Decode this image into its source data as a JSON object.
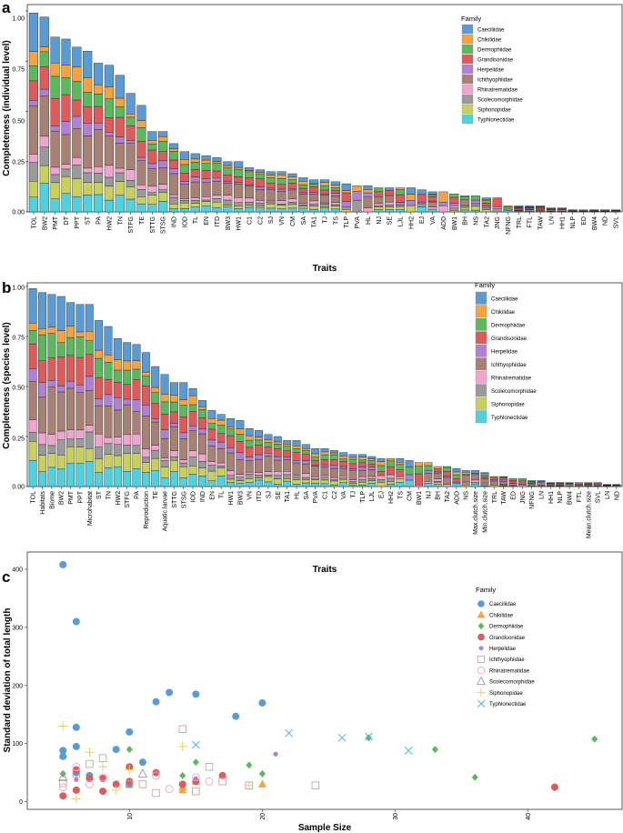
{
  "families": [
    {
      "name": "Caeciliidae",
      "color": "#5B9BD5"
    },
    {
      "name": "Chikilidae",
      "color": "#F4A340"
    },
    {
      "name": "Dermophiidae",
      "color": "#5CB85C"
    },
    {
      "name": "Grandisonidae",
      "color": "#E05A5A"
    },
    {
      "name": "Herpelidae",
      "color": "#B07FD6"
    },
    {
      "name": "Ichthyophiidae",
      "color": "#A88174"
    },
    {
      "name": "Rhinatrematidae",
      "color": "#F2A4CF"
    },
    {
      "name": "Scolecomorphidae",
      "color": "#9A9A9A"
    },
    {
      "name": "Siphonopidae",
      "color": "#C8CF5A"
    },
    {
      "name": "Typhlonectidae",
      "color": "#4FD1DF"
    }
  ],
  "chart_data": [
    {
      "id": "a",
      "panel_label": "a",
      "type": "bar",
      "stacked": true,
      "ylabel": "Completeness (individual level)",
      "xlabel": "Traits",
      "legend_title": "Family",
      "ylim": [
        0,
        1.0
      ],
      "yticks": [
        "0.00",
        "0.25",
        "0.50",
        "0.75",
        "1.00"
      ],
      "categories": [
        "TOL",
        "BW2",
        "PMT",
        "DT",
        "PPT",
        "ST",
        "PA",
        "HW2",
        "TN",
        "STFG",
        "TE",
        "STTG",
        "STSG",
        "IND",
        "IOD",
        "TL",
        "EN",
        "ITD",
        "BW3",
        "HW1",
        "C1",
        "C2",
        "SJ",
        "VN",
        "CM",
        "SA",
        "TA1",
        "TJ",
        "TS",
        "TLP",
        "PVA",
        "HL",
        "NJ",
        "SE",
        "LJL",
        "HH2",
        "EJ",
        "VA",
        "ADD",
        "BW1",
        "BH",
        "NS",
        "TA2",
        "JNG",
        "NFNG",
        "TRL",
        "FTL",
        "TAW",
        "LN",
        "HH1",
        "NLP",
        "ED",
        "BW4",
        "ND",
        "SVL"
      ],
      "totals": [
        0.99,
        0.97,
        0.87,
        0.86,
        0.82,
        0.8,
        0.74,
        0.73,
        0.68,
        0.59,
        0.53,
        0.4,
        0.4,
        0.34,
        0.3,
        0.29,
        0.28,
        0.27,
        0.25,
        0.25,
        0.22,
        0.21,
        0.2,
        0.2,
        0.19,
        0.17,
        0.16,
        0.16,
        0.15,
        0.14,
        0.13,
        0.13,
        0.12,
        0.12,
        0.12,
        0.12,
        0.11,
        0.1,
        0.1,
        0.09,
        0.08,
        0.08,
        0.07,
        0.07,
        0.03,
        0.03,
        0.03,
        0.03,
        0.02,
        0.02,
        0.01,
        0.01,
        0.01,
        0.01,
        0.01
      ]
    },
    {
      "id": "b",
      "panel_label": "b",
      "type": "bar",
      "stacked": true,
      "ylabel": "Completeness (species level)",
      "xlabel": "Traits",
      "legend_title": "Family",
      "ylim": [
        0,
        1.0
      ],
      "yticks": [
        "0.00",
        "0.25",
        "0.50",
        "0.75",
        "1.00"
      ],
      "categories": [
        "TOL",
        "Habitats",
        "Biome",
        "BW2",
        "PMT",
        "PPT",
        "Microhabitat",
        "ST",
        "TN",
        "HW2",
        "STFG",
        "PA",
        "Reproduction",
        "TE",
        "Aquatic.larvae",
        "STTG",
        "STSG",
        "IOD",
        "IND",
        "EN",
        "TL",
        "HW1",
        "BW3",
        "VN",
        "ITD",
        "SJ",
        "SE",
        "TA1",
        "HL",
        "SA",
        "PVA",
        "C1",
        "C2",
        "VA",
        "TJ",
        "TLP",
        "LJL",
        "EJ",
        "HH2",
        "TS",
        "CM",
        "BW1",
        "NJ",
        "BH",
        "TA2",
        "ADD",
        "NS",
        "Max.clutch.size",
        "Min.clutch.size",
        "TRL",
        "TAW",
        "ED",
        "JNG",
        "NFNG",
        "LN",
        "HH1",
        "NLP",
        "BW4",
        "FTL",
        "Mean.clutch.size",
        "SVL",
        "LN",
        "ND"
      ],
      "totals": [
        0.99,
        0.97,
        0.96,
        0.95,
        0.92,
        0.91,
        0.91,
        0.83,
        0.8,
        0.74,
        0.72,
        0.71,
        0.67,
        0.6,
        0.56,
        0.52,
        0.52,
        0.49,
        0.43,
        0.38,
        0.36,
        0.34,
        0.33,
        0.29,
        0.28,
        0.26,
        0.25,
        0.23,
        0.23,
        0.21,
        0.19,
        0.19,
        0.18,
        0.17,
        0.16,
        0.16,
        0.15,
        0.14,
        0.14,
        0.14,
        0.13,
        0.12,
        0.12,
        0.1,
        0.1,
        0.09,
        0.08,
        0.08,
        0.07,
        0.05,
        0.05,
        0.04,
        0.04,
        0.03,
        0.03,
        0.02,
        0.02,
        0.02,
        0.02,
        0.02,
        0.02,
        0.01,
        0.01
      ]
    },
    {
      "id": "c",
      "panel_label": "c",
      "type": "scatter",
      "xlabel": "Sample Size",
      "ylabel": "Standard deviation of total length",
      "legend_title": "Family",
      "xlim": [
        3,
        47
      ],
      "ylim": [
        -10,
        425
      ],
      "xticks": [
        10,
        20,
        30,
        40
      ],
      "yticks": [
        0,
        100,
        200,
        300,
        400
      ],
      "series": [
        {
          "name": "Caeciliidae",
          "marker": "circle",
          "x": [
            5,
            5,
            6,
            6,
            6,
            6,
            9,
            10,
            12,
            13,
            15,
            18,
            20,
            11,
            5,
            7,
            10
          ],
          "y": [
            408,
            88,
            310,
            128,
            95,
            50,
            90,
            120,
            172,
            188,
            185,
            147,
            170,
            68,
            78,
            45,
            30
          ]
        },
        {
          "name": "Chikilidae",
          "marker": "triangle",
          "x": [
            14,
            15,
            20,
            14
          ],
          "y": [
            25,
            35,
            30,
            20
          ]
        },
        {
          "name": "Dermophiidae",
          "marker": "diamond",
          "x": [
            5,
            10,
            15,
            19,
            20,
            28,
            33,
            36,
            45,
            14,
            6,
            5
          ],
          "y": [
            48,
            90,
            68,
            63,
            48,
            110,
            90,
            42,
            108,
            45,
            20,
            48
          ]
        },
        {
          "name": "Grandisonidae",
          "marker": "circle",
          "x": [
            5,
            6,
            7,
            8,
            9,
            10,
            12,
            14,
            15,
            17,
            42,
            6,
            8,
            10
          ],
          "y": [
            10,
            55,
            40,
            18,
            30,
            35,
            50,
            30,
            35,
            45,
            25,
            20,
            40,
            60
          ]
        },
        {
          "name": "Herpelidae",
          "marker": "circle-small",
          "x": [
            21,
            15,
            6
          ],
          "y": [
            82,
            40,
            38
          ]
        },
        {
          "name": "Ichthyophiidae",
          "marker": "square",
          "x": [
            5,
            7,
            8,
            10,
            12,
            14,
            17,
            19,
            24,
            11,
            6,
            16,
            15
          ],
          "y": [
            32,
            65,
            75,
            30,
            15,
            125,
            35,
            28,
            28,
            30,
            48,
            60,
            18
          ]
        },
        {
          "name": "Rhinatrematidae",
          "marker": "circle-open",
          "x": [
            5,
            7,
            8,
            12,
            13,
            15,
            16,
            6
          ],
          "y": [
            25,
            30,
            42,
            45,
            22,
            42,
            35,
            60
          ]
        },
        {
          "name": "Scolecomorphidae",
          "marker": "triangle-open",
          "x": [
            5,
            11
          ],
          "y": [
            42,
            48
          ]
        },
        {
          "name": "Siphonopidae",
          "marker": "plus",
          "x": [
            5,
            6,
            7,
            9,
            10,
            14,
            19,
            8
          ],
          "y": [
            130,
            5,
            85,
            20,
            55,
            95,
            28,
            60
          ]
        },
        {
          "name": "Typhlonectidae",
          "marker": "cross",
          "x": [
            15,
            22,
            26,
            28,
            31
          ],
          "y": [
            98,
            118,
            110,
            112,
            88
          ]
        }
      ]
    }
  ]
}
